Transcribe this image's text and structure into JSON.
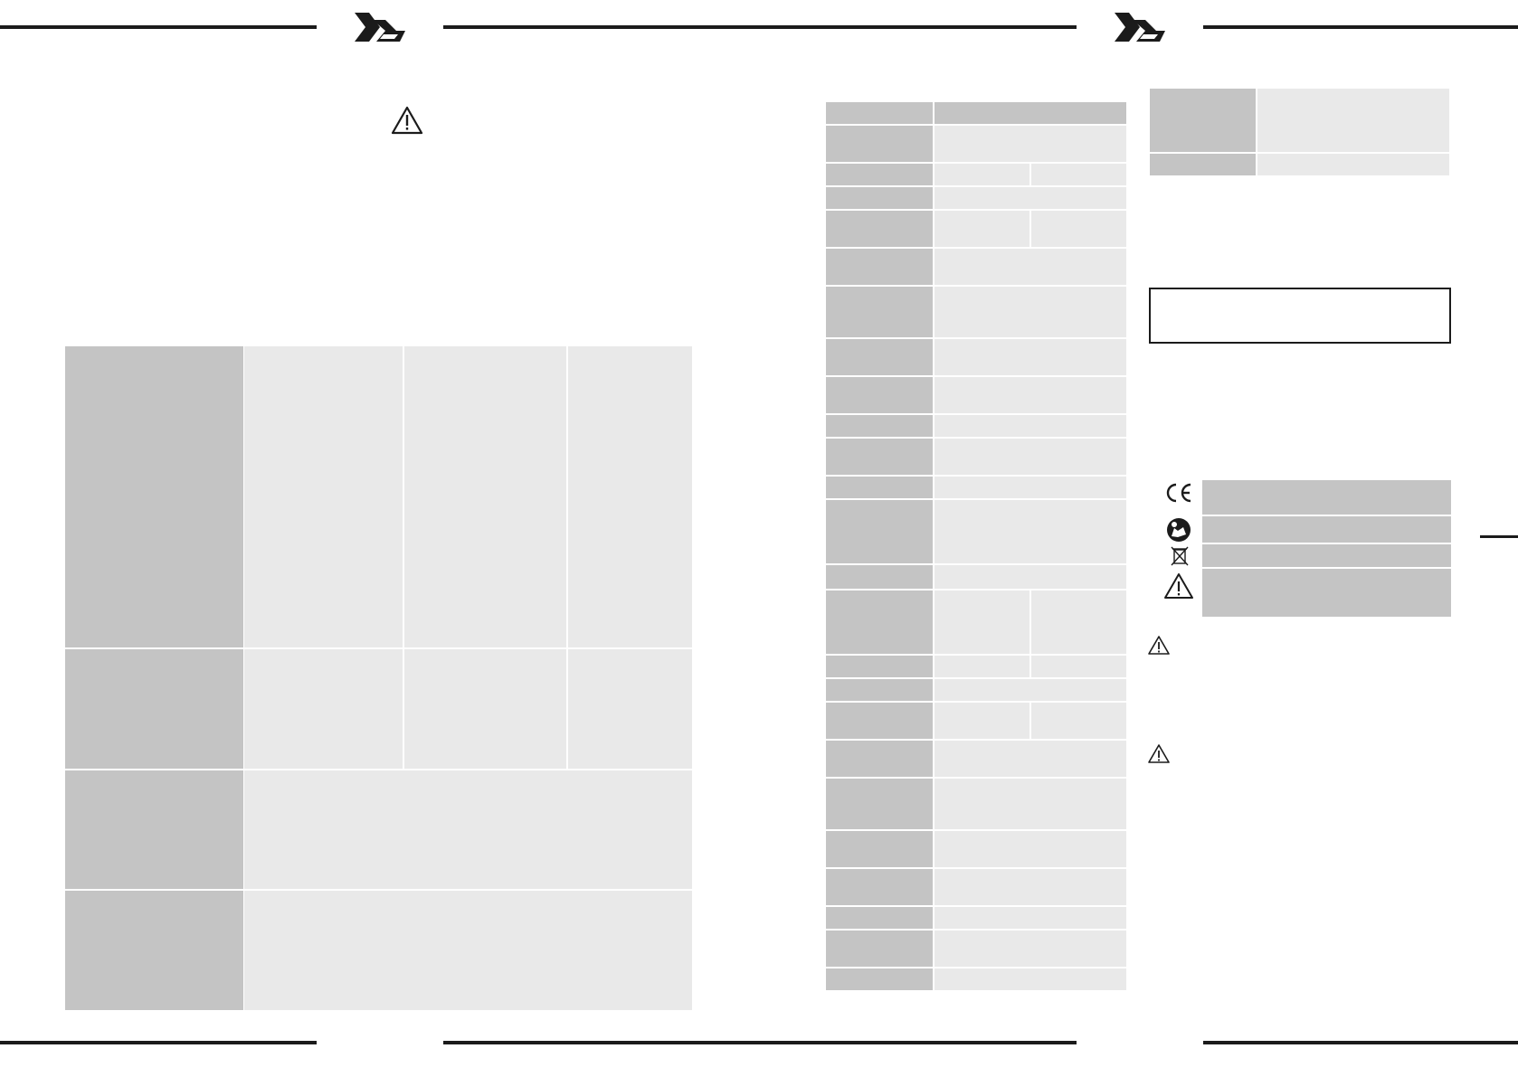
{
  "header": {
    "logo_left": "brand-logo",
    "logo_right": "brand-logo"
  },
  "colors": {
    "rule": "#1b1b1b",
    "cell_dark": "#c4c4c4",
    "cell_light": "#e9e9e9",
    "box_border": "#1b1b1b"
  },
  "icons": {
    "warning": "warning-triangle-icon",
    "ce": "ce-mark-icon",
    "manual": "read-manual-icon",
    "recycle": "crossed-bin-icon"
  },
  "main_table": {
    "rows": [
      {
        "label": "",
        "cells": [
          "",
          "",
          ""
        ]
      },
      {
        "label": "",
        "cells": [
          "",
          "",
          ""
        ]
      },
      {
        "label": "",
        "cells": [
          ""
        ]
      },
      {
        "label": "",
        "cells": [
          ""
        ]
      }
    ]
  },
  "spec_table": {
    "rows": [
      {
        "label": "",
        "values": [
          ""
        ]
      },
      {
        "label": "",
        "values": [
          ""
        ]
      },
      {
        "label": "",
        "values": [
          "",
          ""
        ]
      },
      {
        "label": "",
        "values": [
          ""
        ]
      },
      {
        "label": "",
        "values": [
          "",
          ""
        ]
      },
      {
        "label": "",
        "values": [
          ""
        ]
      },
      {
        "label": "",
        "values": [
          ""
        ]
      },
      {
        "label": "",
        "values": [
          ""
        ]
      },
      {
        "label": "",
        "values": [
          ""
        ]
      },
      {
        "label": "",
        "values": [
          ""
        ]
      },
      {
        "label": "",
        "values": [
          ""
        ]
      },
      {
        "label": "",
        "values": [
          ""
        ]
      },
      {
        "label": "",
        "values": [
          ""
        ]
      },
      {
        "label": "",
        "values": [
          ""
        ]
      },
      {
        "label": "",
        "values": [
          "",
          ""
        ]
      },
      {
        "label": "",
        "values": [
          "",
          ""
        ]
      },
      {
        "label": "",
        "values": [
          ""
        ]
      },
      {
        "label": "",
        "values": [
          "",
          ""
        ]
      },
      {
        "label": "",
        "values": [
          ""
        ]
      },
      {
        "label": "",
        "values": [
          ""
        ]
      },
      {
        "label": "",
        "values": [
          ""
        ]
      },
      {
        "label": "",
        "values": [
          ""
        ]
      },
      {
        "label": "",
        "values": [
          ""
        ]
      },
      {
        "label": "",
        "values": [
          ""
        ]
      },
      {
        "label": "",
        "values": [
          ""
        ]
      }
    ]
  },
  "right_table": {
    "rows": [
      {
        "label": "",
        "value": ""
      },
      {
        "label": "",
        "value": ""
      }
    ]
  },
  "notice_box": {
    "text": ""
  },
  "symbol_table": {
    "rows": [
      {
        "icon": "ce-mark-icon",
        "text": ""
      },
      {
        "icon": "read-manual-icon",
        "text": ""
      },
      {
        "icon": "crossed-bin-icon",
        "text": ""
      },
      {
        "icon": "warning-triangle-icon",
        "text": ""
      }
    ]
  }
}
